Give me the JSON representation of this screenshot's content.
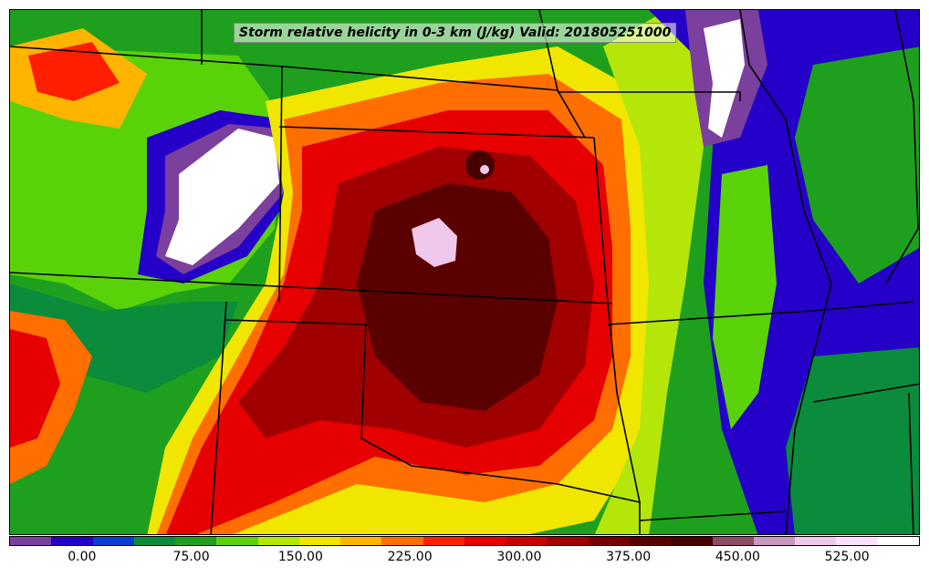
{
  "title": "Storm relative helicity in 0-3 km (J/kg) Valid: 201805251000",
  "colorbar": {
    "colors": [
      "#7b3f9e",
      "#2400c8",
      "#0a3cd2",
      "#0a8c3c",
      "#1ea01e",
      "#5ad20a",
      "#b4e60a",
      "#f0e600",
      "#ffb400",
      "#ff6e00",
      "#ff1e00",
      "#e60000",
      "#c80000",
      "#a00000",
      "#7a0000",
      "#5a0000",
      "#460000",
      "#8c4a64",
      "#c896be",
      "#f0c8eb",
      "#ffe1ff",
      "#ffffff"
    ],
    "tick_labels": [
      "0.00",
      "75.00",
      "150.00",
      "225.00",
      "300.00",
      "375.00",
      "450.00",
      "525.00"
    ],
    "tick_values": [
      0,
      75,
      150,
      225,
      300,
      375,
      450,
      525
    ],
    "min": -50,
    "max": 575
  }
}
